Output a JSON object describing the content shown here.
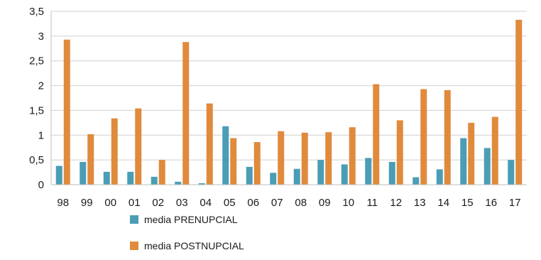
{
  "chart_data": {
    "type": "bar",
    "categories": [
      "98",
      "99",
      "00",
      "01",
      "02",
      "03",
      "04",
      "05",
      "06",
      "07",
      "08",
      "09",
      "10",
      "11",
      "12",
      "13",
      "14",
      "15",
      "16",
      "17"
    ],
    "series": [
      {
        "name": "media PRENUPCIAL",
        "color": "#4a9db5",
        "values": [
          0.38,
          0.46,
          0.26,
          0.26,
          0.16,
          0.06,
          0.03,
          1.18,
          0.36,
          0.24,
          0.32,
          0.5,
          0.41,
          0.54,
          0.46,
          0.15,
          0.31,
          0.94,
          0.74,
          0.5
        ]
      },
      {
        "name": "media POSTNUPCIAL",
        "color": "#e08a3c",
        "values": [
          2.93,
          1.02,
          1.34,
          1.54,
          0.5,
          2.88,
          1.64,
          0.94,
          0.86,
          1.08,
          1.05,
          1.06,
          1.16,
          2.03,
          1.3,
          1.93,
          1.91,
          1.25,
          1.37,
          3.33
        ]
      }
    ],
    "yticks": [
      "0",
      "0,5",
      "1",
      "1,5",
      "2",
      "2,5",
      "3",
      "3,5"
    ],
    "ylim": [
      0,
      3.5
    ],
    "grid": true,
    "legend_position": "bottom-left",
    "title": "",
    "xlabel": "",
    "ylabel": ""
  }
}
